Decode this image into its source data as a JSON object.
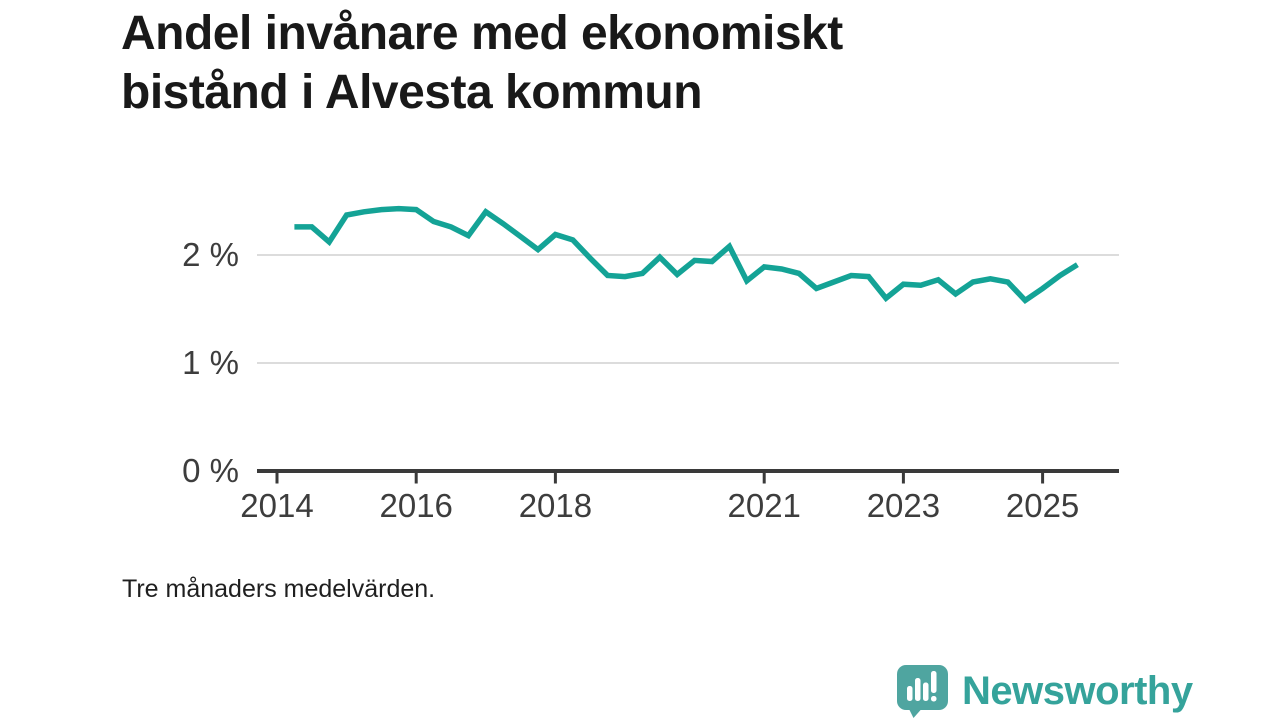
{
  "page": {
    "title": "Andel invånare med ekonomiskt\nbistånd i Alvesta kommun",
    "footnote": "Tre månaders medelvärden.",
    "background_color": "#ffffff"
  },
  "branding": {
    "logo_text": "Newsworthy",
    "logo_icon": "speech-bubble-bar-chart-icon",
    "logo_bubble_color": "#4fa5a0",
    "logo_text_color": "#35a39b"
  },
  "chart_data": {
    "type": "line",
    "title": "Andel invånare med ekonomiskt bistånd i Alvesta kommun",
    "subtitle": "Tre månaders medelvärden.",
    "xlabel": "",
    "ylabel": "",
    "legend": "none",
    "grid": "horizontal-only",
    "xlim": [
      2013.72,
      2025.9
    ],
    "ylim": [
      0,
      2.72
    ],
    "x_ticks": [
      2014,
      2016,
      2018,
      2021,
      2023,
      2025
    ],
    "x_tick_labels": [
      "2014",
      "2016",
      "2018",
      "2021",
      "2023",
      "2025"
    ],
    "y_ticks": [
      0,
      1,
      2
    ],
    "y_tick_labels": [
      "0 %",
      "1 %",
      "2 %"
    ],
    "line_color": "#14a396",
    "grid_color": "#dcdcdc",
    "axis_color": "#3a3a3a",
    "tick_label_color": "#3d3d3d",
    "series": [
      {
        "name": "Andel invånare med ekonomiskt bistånd (%)",
        "x": [
          2014.25,
          2014.5,
          2014.75,
          2015.0,
          2015.25,
          2015.5,
          2015.75,
          2016.0,
          2016.25,
          2016.5,
          2016.75,
          2017.0,
          2017.25,
          2017.5,
          2017.75,
          2018.0,
          2018.25,
          2018.5,
          2018.75,
          2019.0,
          2019.25,
          2019.5,
          2019.75,
          2020.0,
          2020.25,
          2020.5,
          2020.75,
          2021.0,
          2021.25,
          2021.5,
          2021.75,
          2022.0,
          2022.25,
          2022.5,
          2022.75,
          2023.0,
          2023.25,
          2023.5,
          2023.75,
          2024.0,
          2024.25,
          2024.5,
          2024.75,
          2025.0,
          2025.25,
          2025.5
        ],
        "y": [
          2.26,
          2.26,
          2.12,
          2.37,
          2.4,
          2.42,
          2.43,
          2.42,
          2.31,
          2.26,
          2.18,
          2.4,
          2.29,
          2.17,
          2.05,
          2.19,
          2.14,
          1.97,
          1.81,
          1.8,
          1.83,
          1.98,
          1.82,
          1.95,
          1.94,
          2.08,
          1.76,
          1.89,
          1.87,
          1.83,
          1.69,
          1.75,
          1.81,
          1.8,
          1.6,
          1.73,
          1.72,
          1.77,
          1.64,
          1.75,
          1.78,
          1.75,
          1.58,
          1.69,
          1.81,
          1.91
        ]
      }
    ]
  }
}
